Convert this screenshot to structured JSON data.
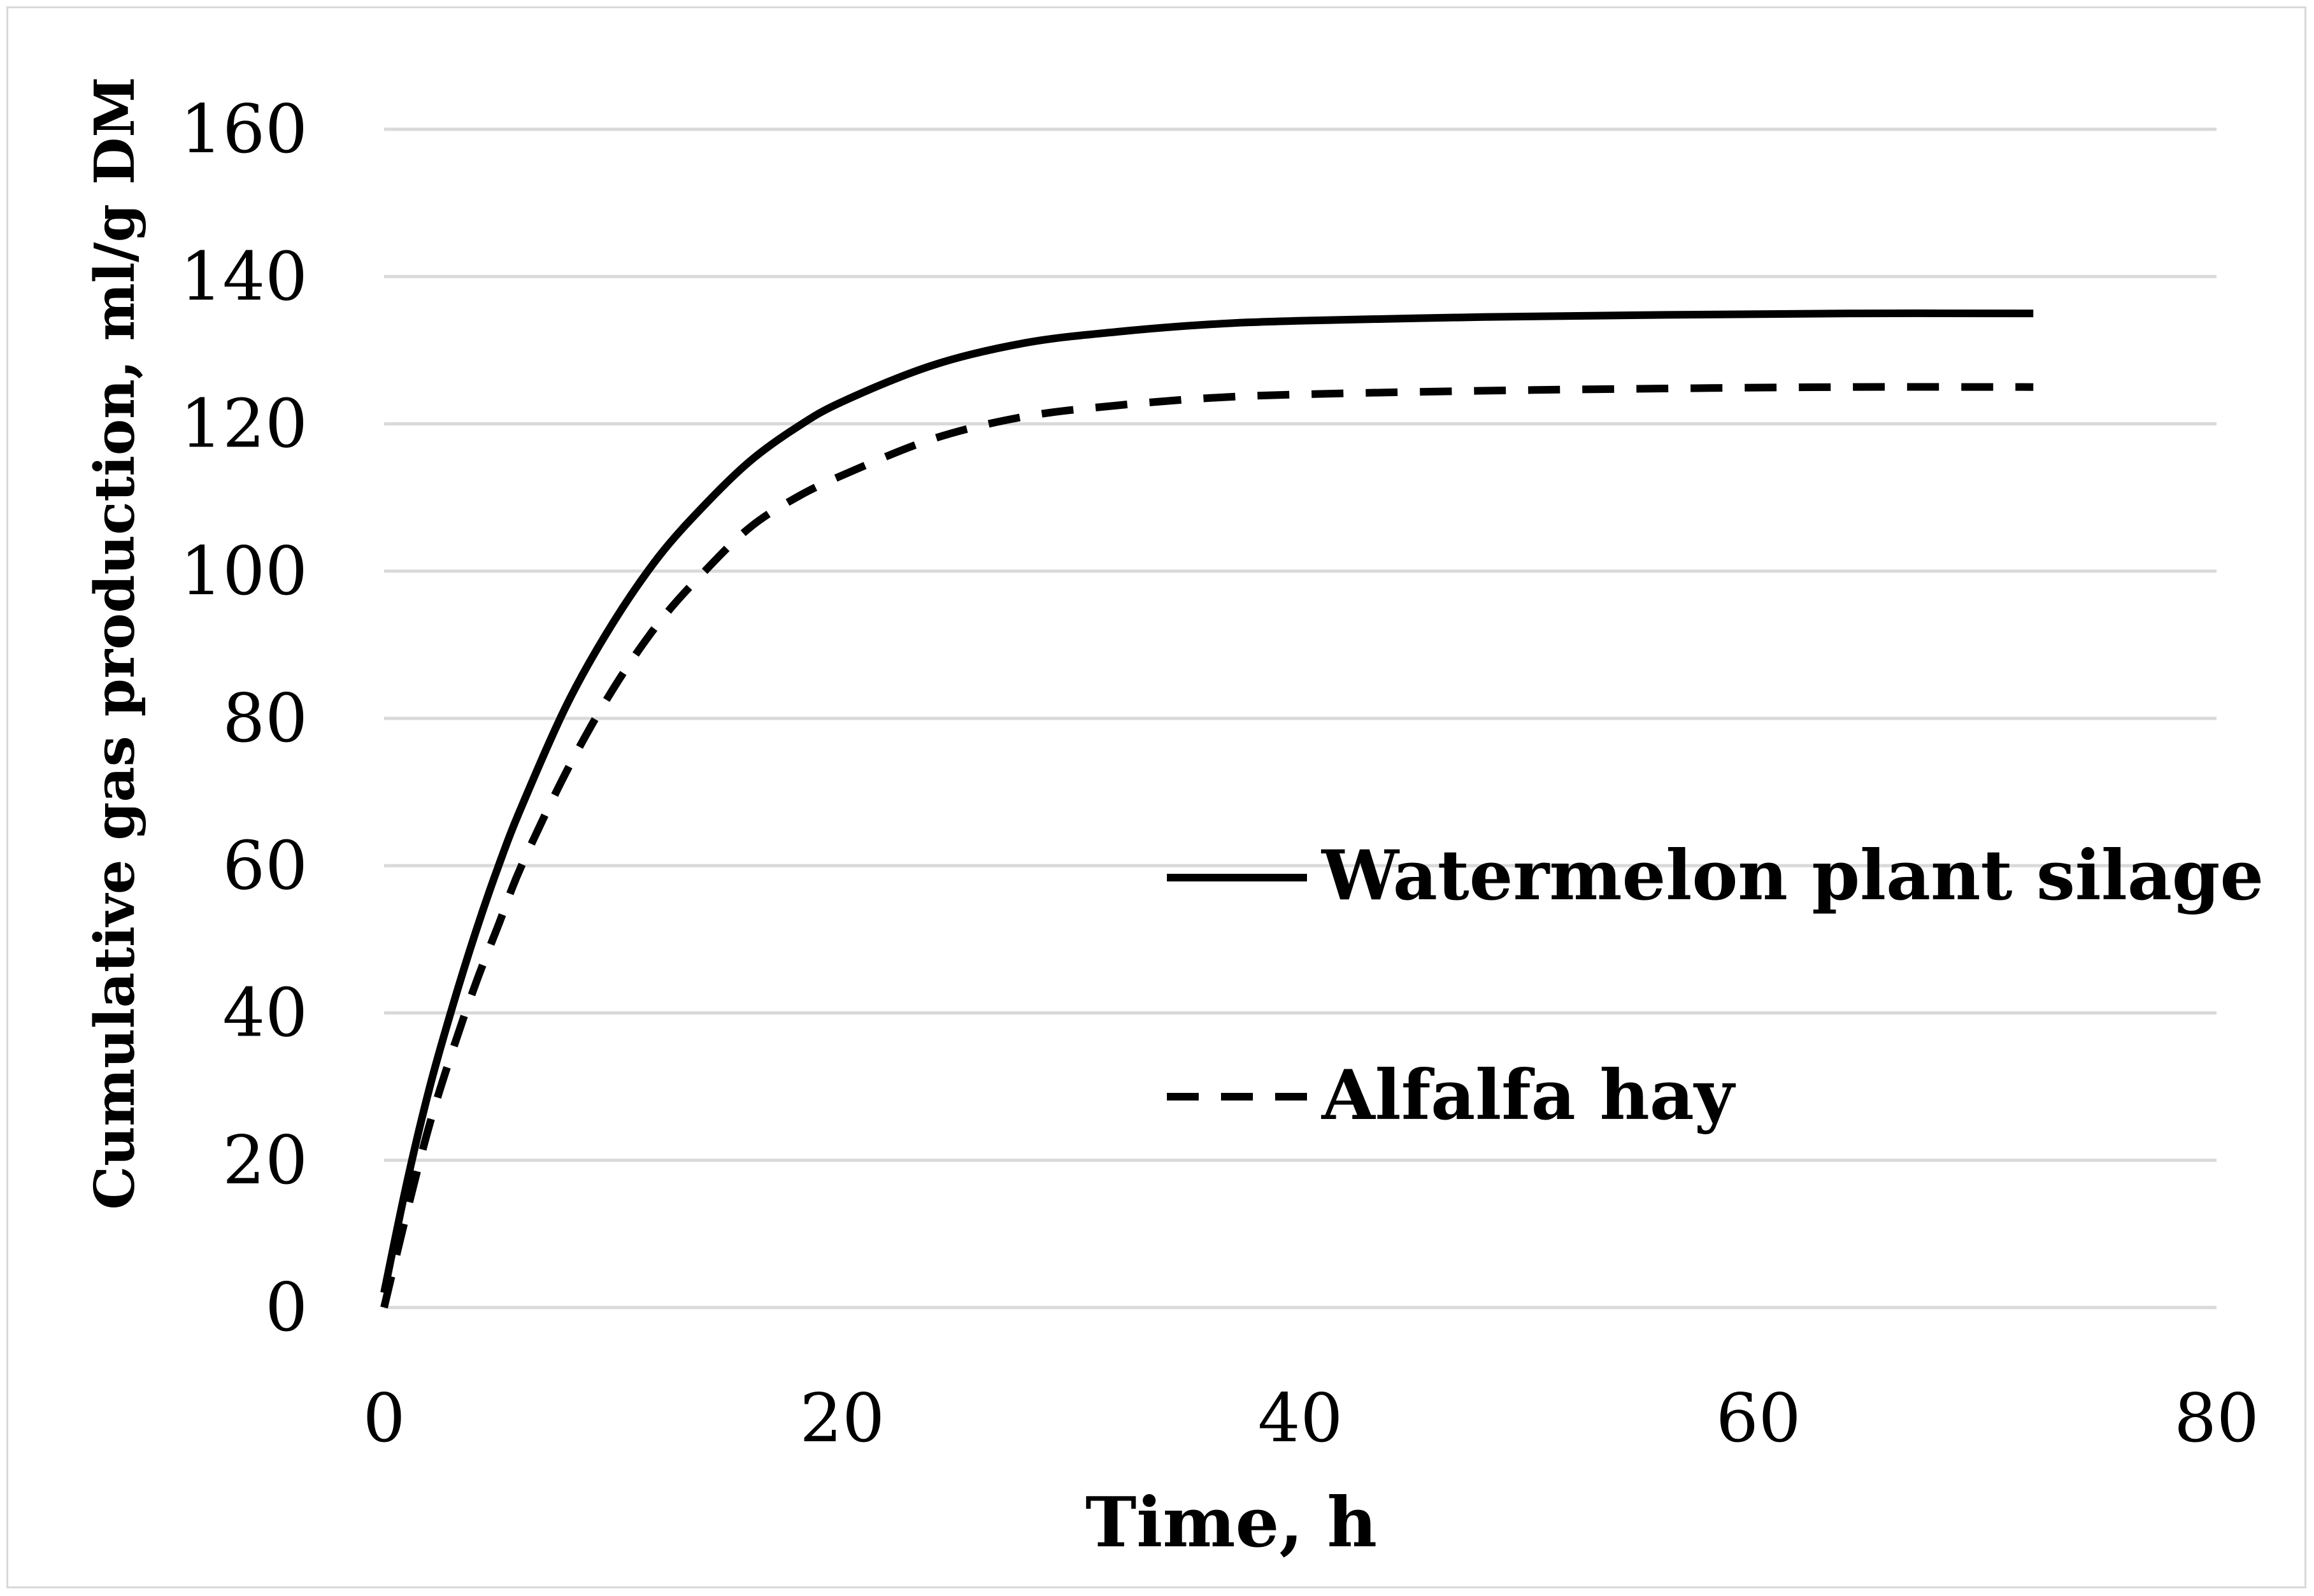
{
  "chart_data": {
    "type": "line",
    "title": "",
    "xlabel": "Time, h",
    "ylabel": "Cumulative gas production, ml/g DM",
    "xlim": [
      0,
      80
    ],
    "ylim": [
      0,
      160
    ],
    "xticks": [
      0,
      20,
      40,
      60,
      80
    ],
    "yticks": [
      0,
      20,
      40,
      60,
      80,
      100,
      120,
      140,
      160
    ],
    "grid": "horizontal",
    "legend_position": "right-center",
    "series": [
      {
        "name": "Watermelon plant silage",
        "style": "solid",
        "color": "#000000",
        "x": [
          0,
          1,
          2,
          3,
          4,
          5,
          6,
          8,
          10,
          12,
          14,
          16,
          18,
          20,
          24,
          28,
          32,
          36,
          40,
          48,
          56,
          64,
          72
        ],
        "y": [
          2,
          17,
          30,
          41,
          51,
          60,
          68,
          82,
          93,
          102,
          109,
          115,
          119.5,
          123,
          128,
          131,
          132.5,
          133.5,
          134,
          134.5,
          134.8,
          135,
          135
        ]
      },
      {
        "name": "Alfalfa hay",
        "style": "dashed",
        "color": "#000000",
        "x": [
          0,
          1,
          2,
          3,
          4,
          5,
          6,
          8,
          10,
          12,
          14,
          16,
          18,
          20,
          24,
          28,
          32,
          36,
          40,
          48,
          56,
          64,
          72
        ],
        "y": [
          0,
          13,
          25,
          35,
          44,
          52,
          60,
          73,
          84,
          93,
          100,
          106,
          110,
          113,
          118,
          121,
          122.5,
          123.5,
          124,
          124.5,
          124.8,
          125,
          125
        ]
      }
    ]
  }
}
